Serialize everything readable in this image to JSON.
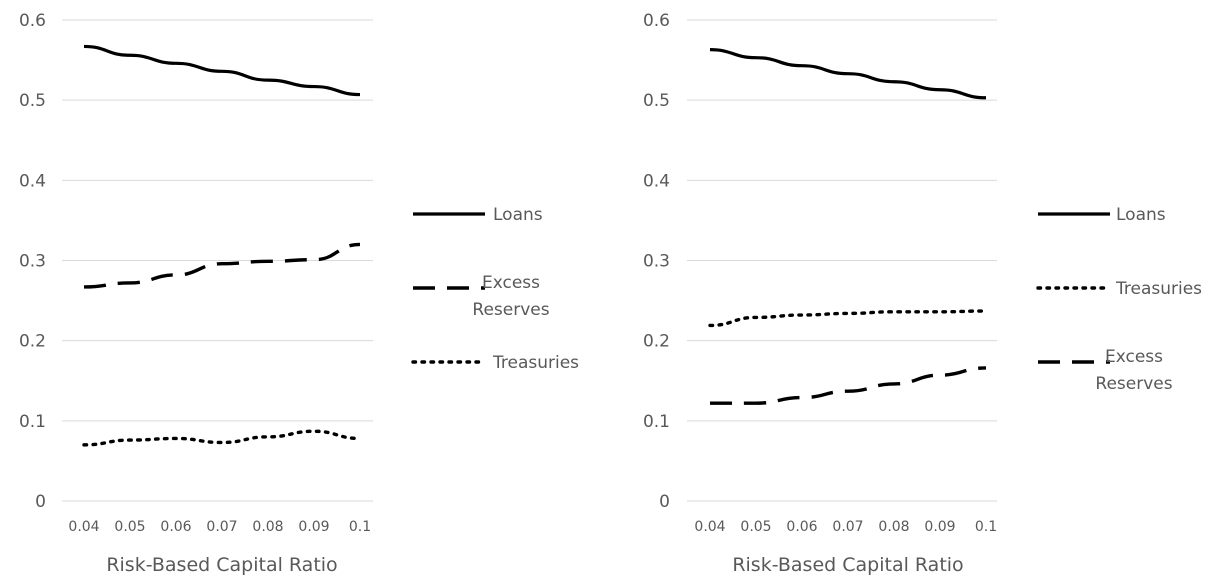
{
  "chart_data": [
    {
      "type": "line",
      "title": "",
      "xlabel": "Risk-Based Capital Ratio",
      "ylabel": "",
      "ylim": [
        0,
        0.6
      ],
      "yticks": [
        "0",
        "0.1",
        "0.2",
        "0.3",
        "0.4",
        "0.5",
        "0.6"
      ],
      "categories": [
        "0.04",
        "0.05",
        "0.06",
        "0.07",
        "0.08",
        "0.09",
        "0.1"
      ],
      "grid": true,
      "legend_position": "right",
      "series": [
        {
          "name": "Loans",
          "style": "solid",
          "color": "#000000",
          "values": [
            0.567,
            0.556,
            0.546,
            0.536,
            0.525,
            0.517,
            0.507
          ]
        },
        {
          "name": "Excess Reserves",
          "legend_lines": [
            "Excess",
            "Reserves"
          ],
          "style": "dashed",
          "color": "#000000",
          "values": [
            0.267,
            0.272,
            0.282,
            0.296,
            0.299,
            0.301,
            0.32
          ]
        },
        {
          "name": "Treasuries",
          "style": "dotted",
          "color": "#000000",
          "values": [
            0.07,
            0.076,
            0.078,
            0.073,
            0.08,
            0.087,
            0.078
          ]
        }
      ]
    },
    {
      "type": "line",
      "title": "",
      "xlabel": "Risk-Based Capital Ratio",
      "ylabel": "",
      "ylim": [
        0,
        0.6
      ],
      "yticks": [
        "0",
        "0.1",
        "0.2",
        "0.3",
        "0.4",
        "0.5",
        "0.6"
      ],
      "categories": [
        "0.04",
        "0.05",
        "0.06",
        "0.07",
        "0.08",
        "0.09",
        "0.1"
      ],
      "grid": true,
      "legend_position": "right",
      "series": [
        {
          "name": "Loans",
          "style": "solid",
          "color": "#000000",
          "values": [
            0.563,
            0.553,
            0.543,
            0.533,
            0.523,
            0.513,
            0.503
          ]
        },
        {
          "name": "Treasuries",
          "style": "dotted",
          "color": "#000000",
          "values": [
            0.219,
            0.229,
            0.232,
            0.234,
            0.236,
            0.236,
            0.237
          ]
        },
        {
          "name": "Excess Reserves",
          "legend_lines": [
            "Excess",
            "Reserves"
          ],
          "style": "dashed",
          "color": "#000000",
          "values": [
            0.122,
            0.122,
            0.129,
            0.137,
            0.146,
            0.157,
            0.166
          ]
        }
      ]
    }
  ]
}
